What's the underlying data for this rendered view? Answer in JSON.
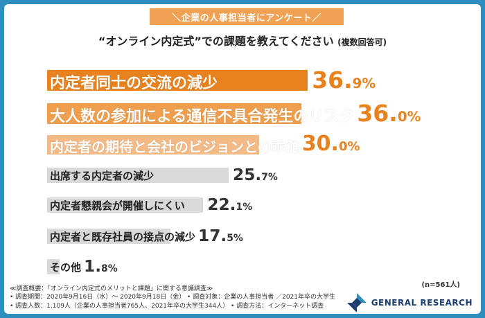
{
  "header": {
    "banner": "＼企業の人事担当者にアンケート／",
    "title": "“オンライン内定式”での課題を教えてください",
    "title_note": "(複数回答可)"
  },
  "chart_data": {
    "type": "bar",
    "orientation": "horizontal",
    "categories": [
      "内定者同士の交流の減少",
      "大人数の参加による通信不具合発生のリスク",
      "内定者の期待と会社のビジョンとの乖離",
      "出席する内定者の減少",
      "内定者懇親会が開催しにくい",
      "内定者と既存社員の接点の減少",
      "その他"
    ],
    "values": [
      36.9,
      36.0,
      30.0,
      25.7,
      22.1,
      17.5,
      1.8
    ],
    "value_labels": [
      {
        "int": "36.",
        "dec": "9%"
      },
      {
        "int": "36.",
        "dec": "0%"
      },
      {
        "int": "30.",
        "dec": "0%"
      },
      {
        "int": "25.",
        "dec": "7%"
      },
      {
        "int": "22.",
        "dec": "1%"
      },
      {
        "int": "17.",
        "dec": "5%"
      },
      {
        "int": "1.",
        "dec": "8%"
      }
    ],
    "xlim": [
      0,
      40
    ],
    "highlight_colors": [
      "#e8821e",
      "#ee9e4c",
      "#f3ba85"
    ],
    "base_color": "#d9d9d9",
    "highlight_text_color": "#e8821e",
    "base_text_color": "#333333"
  },
  "sample_size": "(n=561人)",
  "footer": {
    "rows": [
      "≪調査概要：「オンライン内定式のメリットと課題」に関する意識調査≫",
      "• 調査期間：2020年9月16日（水）～ 2020年9月18日（金） • 調査対象：企業の人事担当者 ／2021年卒の大学生",
      "• 調査人数：1,109人（企業の人事担当者765人、2021年卒の大学生344人）  • 調査方法：インターネット調査"
    ]
  },
  "logo": {
    "text": "GENERAL RESEARCH",
    "colors": [
      "#1b3f70",
      "#2d8fbe"
    ]
  }
}
